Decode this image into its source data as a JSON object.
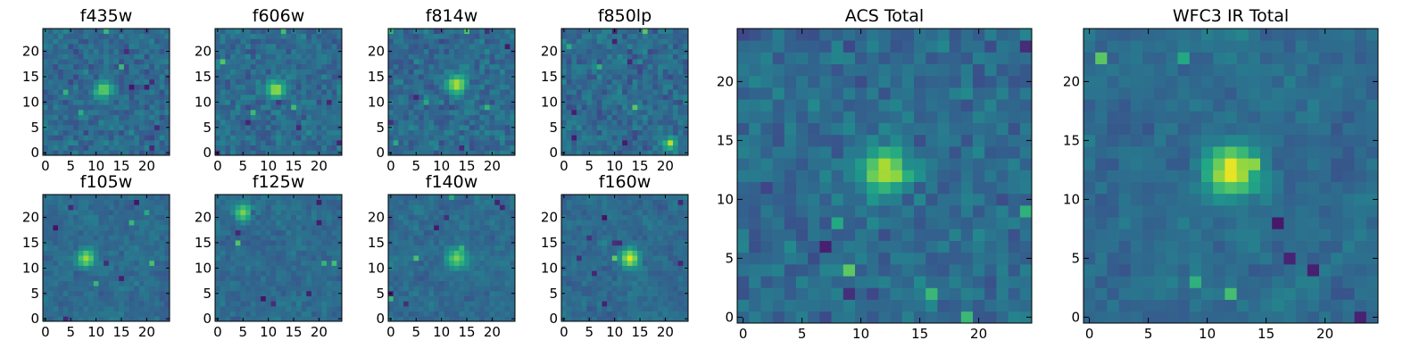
{
  "chart_data": [
    {
      "type": "heatmap",
      "title": "f435w",
      "colormap": "viridis",
      "x_ticks": [
        "0",
        "5",
        "10",
        "15",
        "20"
      ],
      "y_ticks": [
        "0",
        "5",
        "10",
        "15",
        "20"
      ],
      "xlim": [
        0,
        24
      ],
      "ylim": [
        0,
        24
      ],
      "grid": false,
      "peak": {
        "x": 11.5,
        "y": 12.5,
        "value": 0.8,
        "radius": 1.2
      }
    },
    {
      "type": "heatmap",
      "title": "f606w",
      "colormap": "viridis",
      "x_ticks": [
        "0",
        "5",
        "10",
        "15",
        "20"
      ],
      "y_ticks": [
        "0",
        "5",
        "10",
        "15",
        "20"
      ],
      "xlim": [
        0,
        24
      ],
      "ylim": [
        0,
        24
      ],
      "grid": false,
      "peak": {
        "x": 11.5,
        "y": 12.5,
        "value": 0.9,
        "radius": 1.2
      }
    },
    {
      "type": "heatmap",
      "title": "f814w",
      "colormap": "viridis",
      "x_ticks": [
        "0",
        "5",
        "10",
        "15",
        "20"
      ],
      "y_ticks": [
        "0",
        "5",
        "10",
        "15",
        "20"
      ],
      "xlim": [
        0,
        24
      ],
      "ylim": [
        0,
        24
      ],
      "grid": false,
      "peak": {
        "x": 13,
        "y": 13.5,
        "value": 0.9,
        "radius": 1.3
      }
    },
    {
      "type": "heatmap",
      "title": "f850lp",
      "colormap": "viridis",
      "x_ticks": [
        "0",
        "5",
        "10",
        "15",
        "20"
      ],
      "y_ticks": [
        "0",
        "5",
        "10",
        "15",
        "20"
      ],
      "xlim": [
        0,
        24
      ],
      "ylim": [
        0,
        24
      ],
      "grid": false,
      "peak": {
        "x": 21,
        "y": 2,
        "value": 0.9,
        "radius": 0.8
      }
    },
    {
      "type": "heatmap",
      "title": "f105w",
      "colormap": "viridis",
      "x_ticks": [
        "0",
        "5",
        "10",
        "15",
        "20"
      ],
      "y_ticks": [
        "0",
        "5",
        "10",
        "15",
        "20"
      ],
      "xlim": [
        0,
        24
      ],
      "ylim": [
        0,
        24
      ],
      "grid": false,
      "peak": {
        "x": 8,
        "y": 12,
        "value": 0.85,
        "radius": 1.3
      }
    },
    {
      "type": "heatmap",
      "title": "f125w",
      "colormap": "viridis",
      "x_ticks": [
        "0",
        "5",
        "10",
        "15",
        "20"
      ],
      "y_ticks": [
        "0",
        "5",
        "10",
        "15",
        "20"
      ],
      "xlim": [
        0,
        24
      ],
      "ylim": [
        0,
        24
      ],
      "grid": false,
      "peak": {
        "x": 5,
        "y": 21,
        "value": 0.8,
        "radius": 1.2
      }
    },
    {
      "type": "heatmap",
      "title": "f140w",
      "colormap": "viridis",
      "x_ticks": [
        "0",
        "5",
        "10",
        "15",
        "20"
      ],
      "y_ticks": [
        "0",
        "5",
        "10",
        "15",
        "20"
      ],
      "xlim": [
        0,
        24
      ],
      "ylim": [
        0,
        24
      ],
      "grid": false,
      "peak": {
        "x": 13,
        "y": 12,
        "value": 0.8,
        "radius": 1.4
      }
    },
    {
      "type": "heatmap",
      "title": "f160w",
      "colormap": "viridis",
      "x_ticks": [
        "0",
        "5",
        "10",
        "15",
        "20"
      ],
      "y_ticks": [
        "0",
        "5",
        "10",
        "15",
        "20"
      ],
      "xlim": [
        0,
        24
      ],
      "ylim": [
        0,
        24
      ],
      "grid": false,
      "peak": {
        "x": 13,
        "y": 12,
        "value": 0.95,
        "radius": 1.3
      }
    },
    {
      "type": "heatmap",
      "title": "ACS Total",
      "colormap": "viridis",
      "x_ticks": [
        "0",
        "5",
        "10",
        "15",
        "20"
      ],
      "y_ticks": [
        "0",
        "5",
        "10",
        "15",
        "20"
      ],
      "xlim": [
        0,
        24
      ],
      "ylim": [
        0,
        24
      ],
      "grid": false,
      "peak": {
        "x": 12,
        "y": 12.5,
        "value": 0.9,
        "radius": 1.4
      }
    },
    {
      "type": "heatmap",
      "title": "WFC3 IR Total",
      "colormap": "viridis",
      "x_ticks": [
        "0",
        "5",
        "10",
        "15",
        "20"
      ],
      "y_ticks": [
        "0",
        "5",
        "10",
        "15",
        "20"
      ],
      "xlim": [
        0,
        24
      ],
      "ylim": [
        0,
        24
      ],
      "grid": false,
      "peak": {
        "x": 12,
        "y": 12.5,
        "value": 1.0,
        "radius": 1.5
      }
    }
  ]
}
